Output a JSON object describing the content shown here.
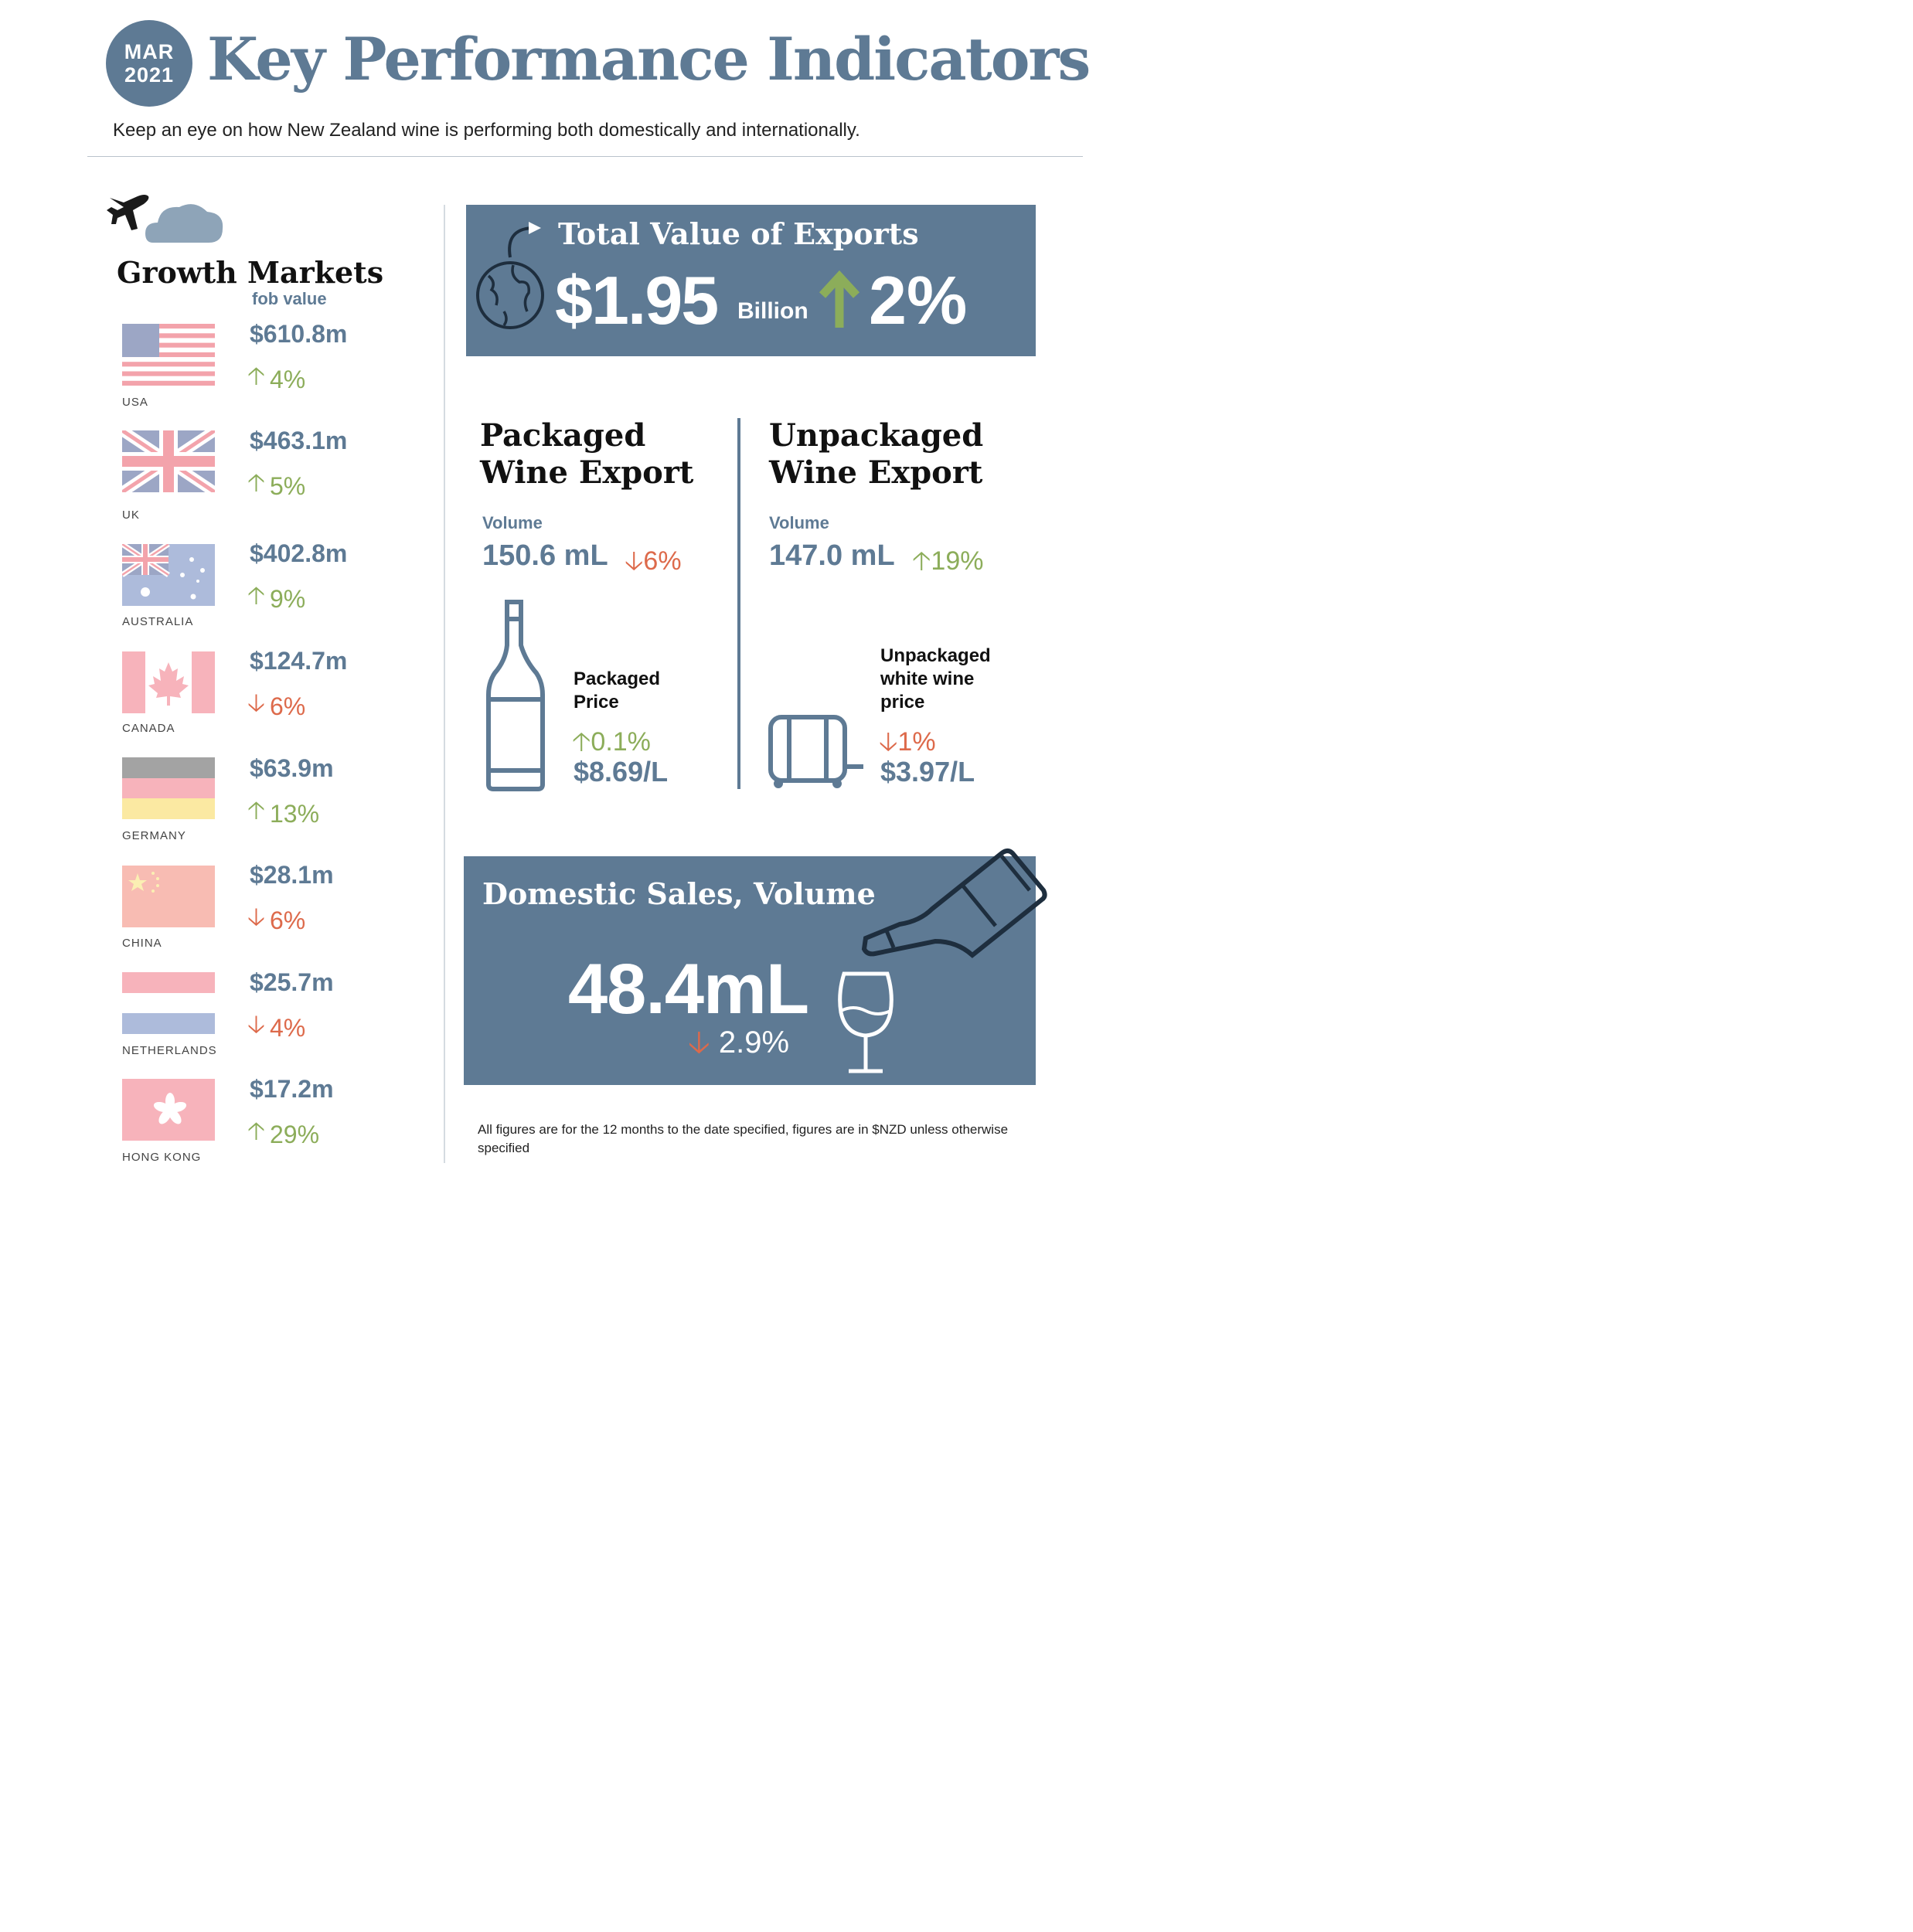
{
  "header": {
    "badge_month": "MAR",
    "badge_year": "2021",
    "title": "Key Performance Indicators",
    "subtitle": "Keep an eye on how New Zealand wine is performing both domestically and internationally."
  },
  "growth_markets": {
    "title": "Growth Markets",
    "subtitle": "fob value",
    "markets": [
      {
        "country": "USA",
        "value": "$610.8m",
        "change": "4%",
        "direction": "up"
      },
      {
        "country": "UK",
        "value": "$463.1m",
        "change": "5%",
        "direction": "up"
      },
      {
        "country": "AUSTRALIA",
        "value": "$402.8m",
        "change": "9%",
        "direction": "up"
      },
      {
        "country": "CANADA",
        "value": "$124.7m",
        "change": "6%",
        "direction": "down"
      },
      {
        "country": "GERMANY",
        "value": "$63.9m",
        "change": "13%",
        "direction": "up"
      },
      {
        "country": "CHINA",
        "value": "$28.1m",
        "change": "6%",
        "direction": "down"
      },
      {
        "country": "NETHERLANDS",
        "value": "$25.7m",
        "change": "4%",
        "direction": "down"
      },
      {
        "country": "HONG KONG",
        "value": "$17.2m",
        "change": "29%",
        "direction": "up"
      }
    ]
  },
  "total_exports": {
    "title": "Total Value of Exports",
    "value": "$1.95",
    "unit": "Billion",
    "change": "2%",
    "direction": "up"
  },
  "packaged": {
    "title_line1": "Packaged",
    "title_line2": "Wine Export",
    "volume_label": "Volume",
    "volume_value": "150.6 mL",
    "volume_change": "6%",
    "volume_direction": "down",
    "price_label_line1": "Packaged",
    "price_label_line2": "Price",
    "price_change": "0.1%",
    "price_direction": "up",
    "price_value": "$8.69/L"
  },
  "unpackaged": {
    "title_line1": "Unpackaged",
    "title_line2": "Wine Export",
    "volume_label": "Volume",
    "volume_value": "147.0 mL",
    "volume_change": "19%",
    "volume_direction": "up",
    "price_label_line1": "Unpackaged",
    "price_label_line2": "white wine",
    "price_label_line3": "price",
    "price_change": "1%",
    "price_direction": "down",
    "price_value": "$3.97/L"
  },
  "domestic": {
    "title": "Domestic Sales, Volume",
    "value": "48.4mL",
    "change": "2.9%",
    "direction": "down"
  },
  "footnote": "All figures are for the 12 months to the date specified, figures are in $NZD unless otherwise specified",
  "colors": {
    "brand_blue": "#5e7a94",
    "up_green": "#8cad5a",
    "down_red": "#dd6a4b"
  }
}
